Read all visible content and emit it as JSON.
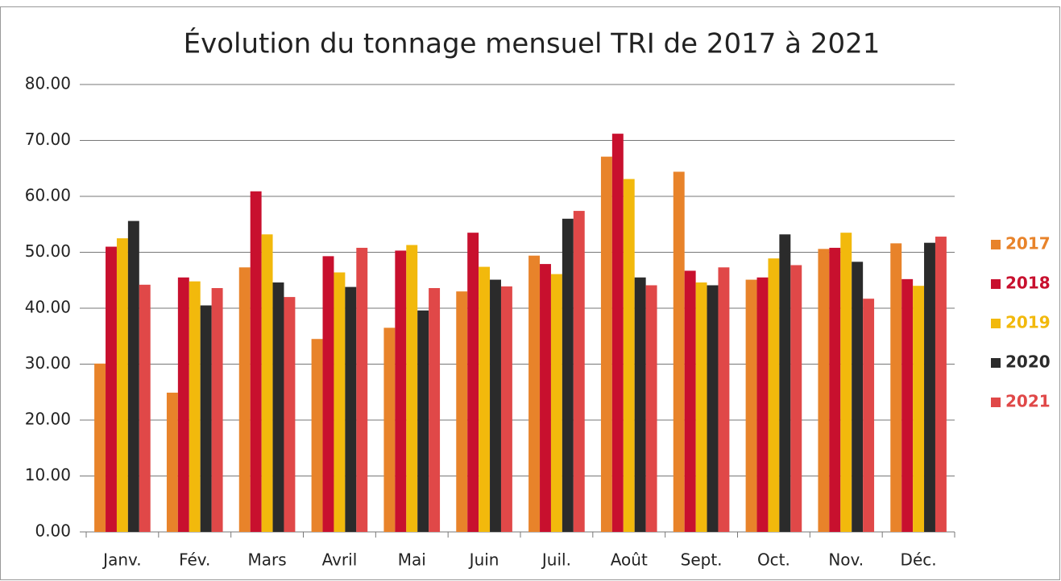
{
  "chart_data": {
    "type": "bar",
    "title": "Évolution du tonnage mensuel TRI de 2017 à 2021",
    "categories": [
      "Janv.",
      "Fév.",
      "Mars",
      "Avril",
      "Mai",
      "Juin",
      "Juil.",
      "Août",
      "Sept.",
      "Oct.",
      "Nov.",
      "Déc."
    ],
    "series": [
      {
        "name": "2017",
        "color": "#e8832a",
        "values": [
          30.1,
          24.9,
          47.3,
          34.5,
          36.5,
          43.0,
          49.4,
          67.1,
          64.4,
          45.1,
          50.6,
          51.6
        ]
      },
      {
        "name": "2018",
        "color": "#c8102e",
        "values": [
          51.0,
          45.5,
          60.9,
          49.3,
          50.3,
          53.5,
          47.9,
          71.2,
          46.7,
          45.5,
          50.8,
          45.2
        ]
      },
      {
        "name": "2019",
        "color": "#f2b90c",
        "values": [
          52.5,
          44.8,
          53.2,
          46.4,
          51.3,
          47.4,
          46.1,
          63.1,
          44.6,
          48.9,
          53.5,
          44.0
        ]
      },
      {
        "name": "2020",
        "color": "#2b2b2b",
        "values": [
          55.6,
          40.5,
          44.6,
          43.8,
          39.6,
          45.1,
          56.0,
          45.5,
          44.1,
          53.2,
          48.3,
          51.7
        ]
      },
      {
        "name": "2021",
        "color": "#e04848",
        "values": [
          44.2,
          43.6,
          42.0,
          50.8,
          43.6,
          43.9,
          57.4,
          44.1,
          47.3,
          47.7,
          41.7,
          52.8
        ]
      }
    ],
    "ylim": [
      0,
      80
    ],
    "yticks": [
      {
        "value": 0,
        "label": "0.00"
      },
      {
        "value": 10,
        "label": "10.00"
      },
      {
        "value": 20,
        "label": "20.00"
      },
      {
        "value": 30,
        "label": "30.00"
      },
      {
        "value": 40,
        "label": "40.00"
      },
      {
        "value": 50,
        "label": "50.00"
      },
      {
        "value": 60,
        "label": "60.00"
      },
      {
        "value": 70,
        "label": "70.00"
      },
      {
        "value": 80,
        "label": "80.00"
      }
    ],
    "grid": true,
    "legend": "right"
  }
}
